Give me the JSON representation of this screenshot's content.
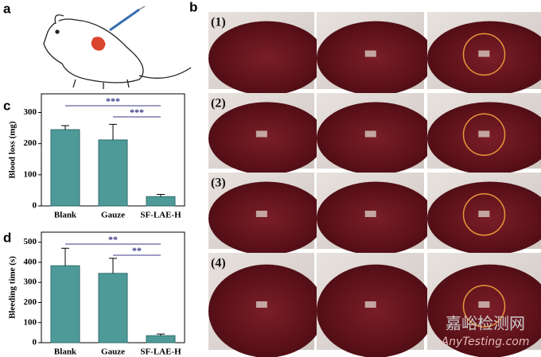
{
  "panel_labels": {
    "a": "a",
    "b": "b",
    "c": "c",
    "d": "d"
  },
  "photo_rows": [
    "(1)",
    "(2)",
    "(3)",
    "(4)"
  ],
  "watermark": {
    "cn": "嘉峪检测网",
    "en": "AnyTesting.com"
  },
  "chart_data": [
    {
      "type": "bar",
      "y_label": "Blood loss (mg)",
      "categories": [
        "Blank",
        "Gauze",
        "SF-LAE-H"
      ],
      "values": [
        245,
        212,
        30
      ],
      "errors": [
        13,
        50,
        7
      ],
      "color": "#4e9a98",
      "ylim": [
        0,
        360
      ],
      "yticks": [
        0,
        100,
        200,
        300
      ],
      "annotations": [
        {
          "text": "***",
          "from": "Blank",
          "to": "SF-LAE-H"
        },
        {
          "text": "***",
          "from": "Gauze",
          "to": "SF-LAE-H"
        }
      ]
    },
    {
      "type": "bar",
      "y_label": "Bleeding time (s)",
      "categories": [
        "Blank",
        "Gauze",
        "SF-LAE-H"
      ],
      "values": [
        383,
        345,
        35
      ],
      "errors": [
        87,
        75,
        8
      ],
      "color": "#4e9a98",
      "ylim": [
        0,
        550
      ],
      "yticks": [
        0,
        100,
        200,
        300,
        400,
        500
      ],
      "annotations": [
        {
          "text": "**",
          "from": "Blank",
          "to": "SF-LAE-H"
        },
        {
          "text": "**",
          "from": "Gauze",
          "to": "SF-LAE-H"
        }
      ]
    }
  ]
}
